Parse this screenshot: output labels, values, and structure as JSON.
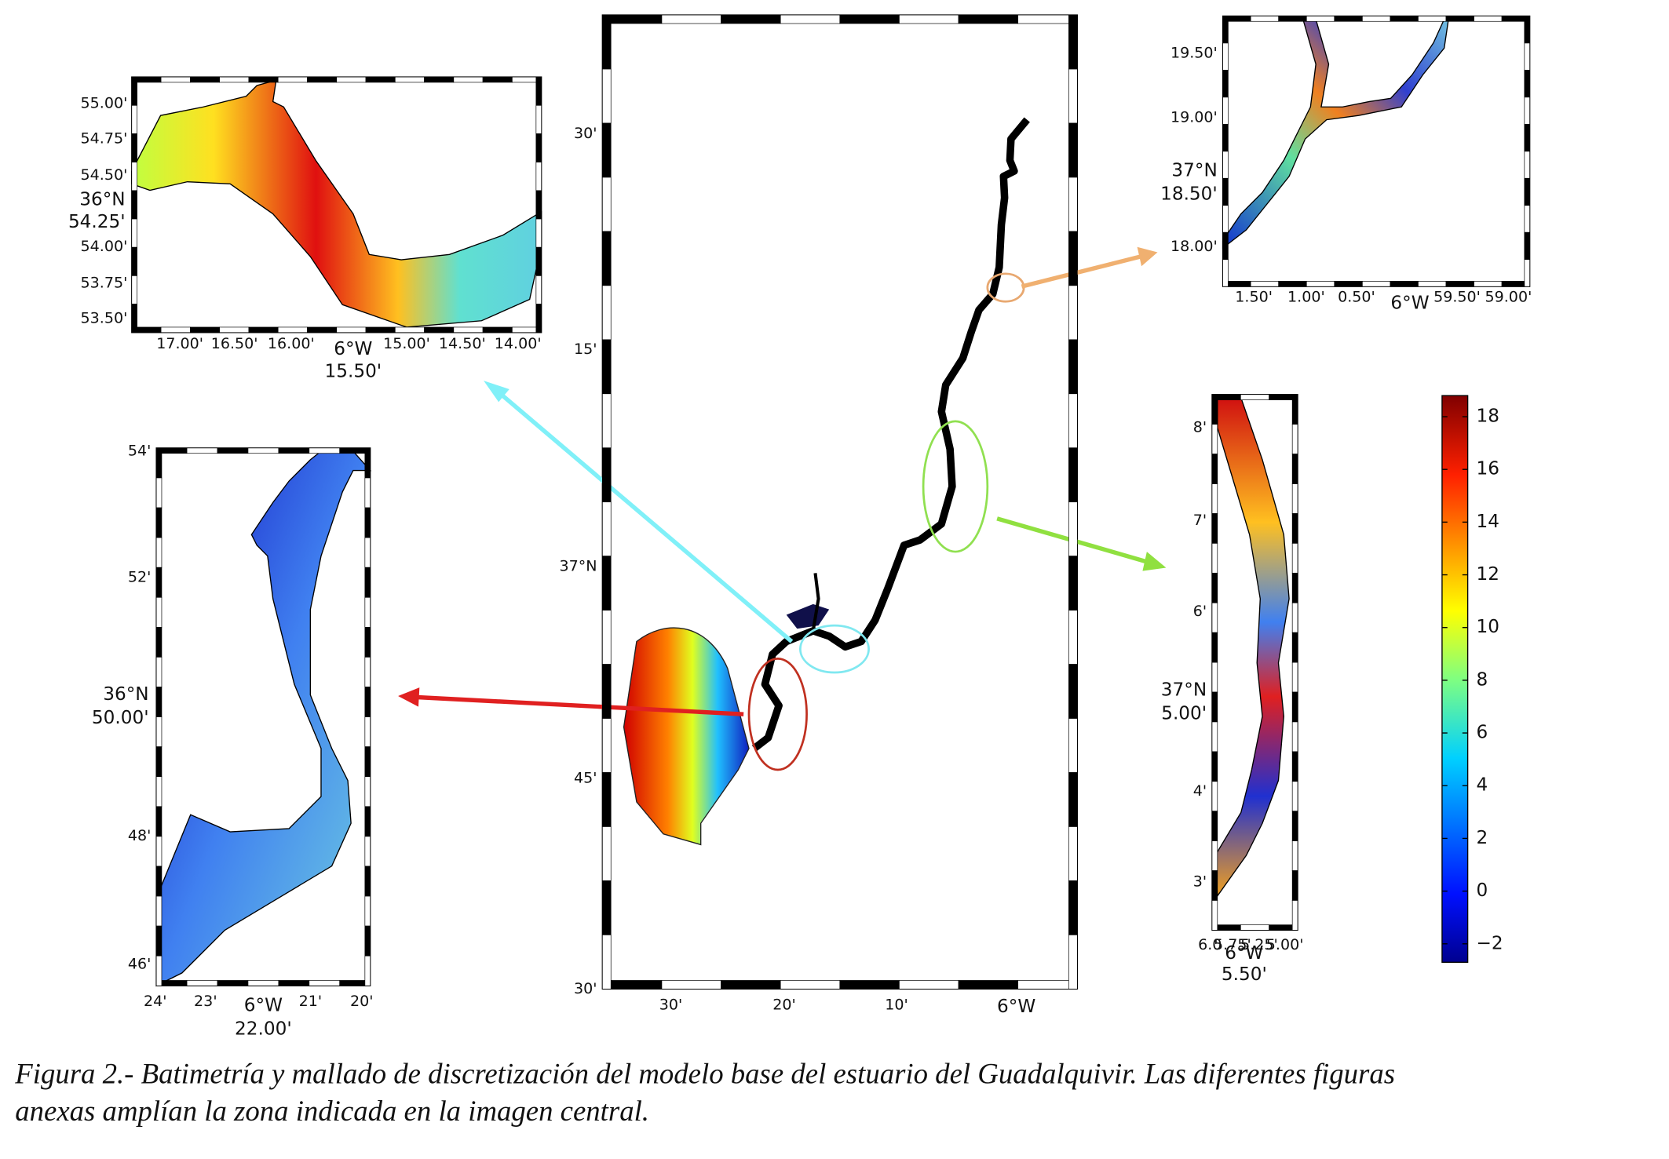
{
  "main_map": {
    "y_labels": [
      "30'",
      "15'",
      "37°N",
      "45'",
      "30'"
    ],
    "x_labels": [
      "30'",
      "20'",
      "10'",
      "6°W"
    ]
  },
  "inset_top_left": {
    "y_labels": [
      "55.00'",
      "54.75'",
      "54.50'",
      "36°N",
      "54.25'",
      "54.00'",
      "53.75'",
      "53.50'"
    ],
    "x_labels": [
      "17.00'",
      "16.50'",
      "16.00'",
      "6°W",
      "15.00'",
      "14.50'",
      "14.00'",
      "15.50'"
    ]
  },
  "inset_bottom_left": {
    "y_labels": [
      "54'",
      "52'",
      "36°N",
      "50.00'",
      "48'",
      "46'"
    ],
    "x_labels": [
      "24'",
      "23'",
      "6°W",
      "21'",
      "20'",
      "22.00'"
    ]
  },
  "inset_top_right": {
    "y_labels": [
      "19.50'",
      "19.00'",
      "37°N",
      "18.50'",
      "18.00'"
    ],
    "x_labels": [
      "1.50'",
      "1.00'",
      "0.50'",
      "6°W",
      "59.50'",
      "59.00'"
    ]
  },
  "inset_right": {
    "y_labels": [
      "8'",
      "7'",
      "6'",
      "37°N",
      "5.00'",
      "4'",
      "3'"
    ],
    "x_labels": [
      "6.0",
      "5.75'",
      "5.25'",
      "5.00'",
      "6°W",
      "5.50'"
    ]
  },
  "colorbar": {
    "lim": [
      -2.7,
      18.8
    ],
    "ticks": [
      {
        "value": -2,
        "label": "−2"
      },
      0,
      2,
      4,
      6,
      8,
      10,
      12,
      14,
      16,
      18
    ]
  },
  "caption": [
    "Figura 2.- Batimetría y mallado de discretización del modelo base del estuario del Guadalquivir. Las diferentes figuras",
    "anexas amplían la zona indicada en la imagen central."
  ]
}
